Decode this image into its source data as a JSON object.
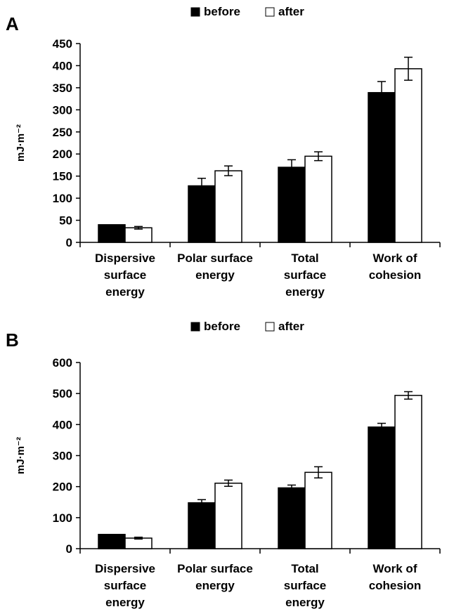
{
  "chart_data": [
    {
      "panel_label": "A",
      "type": "bar",
      "categories": [
        [
          "Dispersive",
          "surface",
          "energy"
        ],
        [
          "Polar surface",
          "energy"
        ],
        [
          "Total",
          "surface",
          "energy"
        ],
        [
          "Work of",
          "cohesion"
        ]
      ],
      "series": [
        {
          "name": "before",
          "color": "#000000",
          "values": [
            40,
            128,
            170,
            339
          ],
          "errors": [
            0,
            17,
            17,
            25
          ]
        },
        {
          "name": "after",
          "color": "#ffffff",
          "values": [
            33,
            162,
            195,
            393
          ],
          "errors": [
            3,
            11,
            10,
            26
          ]
        }
      ],
      "ylabel": "mJ·m⁻²",
      "ylim": [
        0,
        450
      ],
      "yticks": [
        0,
        50,
        100,
        150,
        200,
        250,
        300,
        350,
        400,
        450
      ],
      "legend_position": "top-center",
      "grid": false
    },
    {
      "panel_label": "B",
      "type": "bar",
      "categories": [
        [
          "Dispersive",
          "surface",
          "energy"
        ],
        [
          "Polar surface",
          "energy"
        ],
        [
          "Total",
          "surface",
          "energy"
        ],
        [
          "Work of",
          "cohesion"
        ]
      ],
      "series": [
        {
          "name": "before",
          "color": "#000000",
          "values": [
            46,
            148,
            196,
            392
          ],
          "errors": [
            0,
            10,
            9,
            12
          ]
        },
        {
          "name": "after",
          "color": "#ffffff",
          "values": [
            34,
            211,
            246,
            494
          ],
          "errors": [
            3,
            10,
            18,
            12
          ]
        }
      ],
      "ylabel": "mJ·m⁻²",
      "ylim": [
        0,
        600
      ],
      "yticks": [
        0,
        100,
        200,
        300,
        400,
        500,
        600
      ],
      "legend_position": "top-center",
      "grid": false
    }
  ]
}
